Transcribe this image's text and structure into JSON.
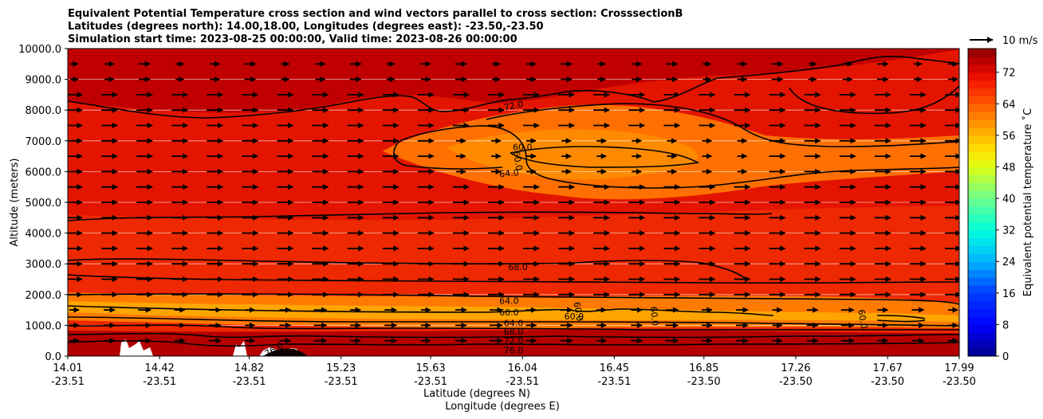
{
  "chart_data": {
    "type": "heatmap",
    "title_lines": [
      "Equivalent Potential Temperature cross section and wind vectors parallel to cross section: CrosssectionB",
      "Latitudes (degrees north): 14.00,18.00, Longitudes (degrees east): -23.50,-23.50",
      "Simulation start time: 2023-08-25 00:00:00, Valid time: 2023-08-26 00:00:00"
    ],
    "ylabel": "Altitude (meters)",
    "xlabel_lat": "Latitude (degrees N)",
    "xlabel_lon": "Longitude (degrees E)",
    "y_ticks": [
      "0.0",
      "1000.0",
      "2000.0",
      "3000.0",
      "4000.0",
      "5000.0",
      "6000.0",
      "7000.0",
      "8000.0",
      "9000.0",
      "10000.0"
    ],
    "ylim": [
      0,
      10000
    ],
    "x_ticks": [
      {
        "lat": "14.01",
        "lon": "-23.51"
      },
      {
        "lat": "14.42",
        "lon": "-23.51"
      },
      {
        "lat": "14.82",
        "lon": "-23.51"
      },
      {
        "lat": "15.23",
        "lon": "-23.51"
      },
      {
        "lat": "15.63",
        "lon": "-23.51"
      },
      {
        "lat": "16.04",
        "lon": "-23.51"
      },
      {
        "lat": "16.45",
        "lon": "-23.51"
      },
      {
        "lat": "16.85",
        "lon": "-23.50"
      },
      {
        "lat": "17.26",
        "lon": "-23.50"
      },
      {
        "lat": "17.67",
        "lon": "-23.50"
      },
      {
        "lat": "17.99",
        "lon": "-23.50"
      }
    ],
    "colorbar_label": "Equivalent potential temperature $^\\circ$C",
    "colorbar_label_display": "Equivalent potential temperature ˚C",
    "colorbar_ticks": [
      "0",
      "8",
      "16",
      "24",
      "32",
      "40",
      "48",
      "56",
      "64",
      "72"
    ],
    "colorbar_range": [
      0,
      78
    ],
    "quiver_key_label": "10 m/s",
    "contour_labels": [
      {
        "text": "72.0",
        "lat": 16.0,
        "alt": 8150,
        "rot": -12
      },
      {
        "text": "60.0",
        "lat": 16.04,
        "alt": 6800,
        "rot": 0
      },
      {
        "text": "64.0",
        "lat": 15.98,
        "alt": 5950,
        "rot": -5
      },
      {
        "text": "60.0",
        "lat": 16.02,
        "alt": 6350,
        "rot": 80
      },
      {
        "text": "68.0",
        "lat": 16.02,
        "alt": 2900,
        "rot": 0
      },
      {
        "text": "64.0",
        "lat": 15.98,
        "alt": 1800,
        "rot": 0
      },
      {
        "text": "60.0",
        "lat": 15.98,
        "alt": 1420,
        "rot": 0
      },
      {
        "text": "60.0",
        "lat": 16.27,
        "alt": 1300,
        "rot": 0
      },
      {
        "text": "60.0",
        "lat": 16.29,
        "alt": 1450,
        "rot": 80
      },
      {
        "text": "64.0",
        "lat": 16.0,
        "alt": 1070,
        "rot": 0
      },
      {
        "text": "68.0",
        "lat": 16.0,
        "alt": 800,
        "rot": 0
      },
      {
        "text": "72.0",
        "lat": 16.0,
        "alt": 500,
        "rot": 0
      },
      {
        "text": "76.0",
        "lat": 16.0,
        "alt": 200,
        "rot": 0
      },
      {
        "text": "60.0",
        "lat": 16.63,
        "alt": 1300,
        "rot": 85
      },
      {
        "text": "60.0",
        "lat": 17.56,
        "alt": 1200,
        "rot": 80
      },
      {
        "text": "76.0",
        "lat": 14.93,
        "alt": 220,
        "rot": -30
      }
    ],
    "colors": {
      "background_dark": "#c00000",
      "mid_red": "#e61a00",
      "orange": "#ff6a00",
      "yellow_orange": "#ffaa00"
    }
  }
}
